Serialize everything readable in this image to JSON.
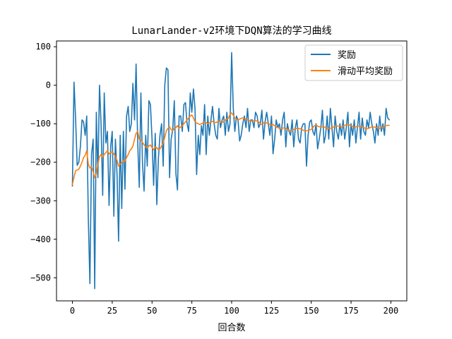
{
  "chart_data": {
    "type": "line",
    "title": "LunarLander-v2环境下DQN算法的学习曲线",
    "xlabel": "回合数",
    "ylabel": "",
    "xlim": [
      -10,
      210
    ],
    "ylim": [
      -560,
      115
    ],
    "xticks": [
      0,
      25,
      50,
      75,
      100,
      125,
      150,
      175,
      200
    ],
    "yticks": [
      100,
      0,
      -100,
      -200,
      -300,
      -400,
      -500
    ],
    "legend_position": "top-right",
    "x": [
      0,
      1,
      2,
      3,
      4,
      5,
      6,
      7,
      8,
      9,
      10,
      11,
      12,
      13,
      14,
      15,
      16,
      17,
      18,
      19,
      20,
      21,
      22,
      23,
      24,
      25,
      26,
      27,
      28,
      29,
      30,
      31,
      32,
      33,
      34,
      35,
      36,
      37,
      38,
      39,
      40,
      41,
      42,
      43,
      44,
      45,
      46,
      47,
      48,
      49,
      50,
      51,
      52,
      53,
      54,
      55,
      56,
      57,
      58,
      59,
      60,
      61,
      62,
      63,
      64,
      65,
      66,
      67,
      68,
      69,
      70,
      71,
      72,
      73,
      74,
      75,
      76,
      77,
      78,
      79,
      80,
      81,
      82,
      83,
      84,
      85,
      86,
      87,
      88,
      89,
      90,
      91,
      92,
      93,
      94,
      95,
      96,
      97,
      98,
      99,
      100,
      101,
      102,
      103,
      104,
      105,
      106,
      107,
      108,
      109,
      110,
      111,
      112,
      113,
      114,
      115,
      116,
      117,
      118,
      119,
      120,
      121,
      122,
      123,
      124,
      125,
      126,
      127,
      128,
      129,
      130,
      131,
      132,
      133,
      134,
      135,
      136,
      137,
      138,
      139,
      140,
      141,
      142,
      143,
      144,
      145,
      146,
      147,
      148,
      149,
      150,
      151,
      152,
      153,
      154,
      155,
      156,
      157,
      158,
      159,
      160,
      161,
      162,
      163,
      164,
      165,
      166,
      167,
      168,
      169,
      170,
      171,
      172,
      173,
      174,
      175,
      176,
      177,
      178,
      179,
      180,
      181,
      182,
      183,
      184,
      185,
      186,
      187,
      188,
      189,
      190,
      191,
      192,
      193,
      194,
      195,
      196,
      197,
      198,
      199
    ],
    "series": [
      {
        "name": "奖励",
        "color": "#1f77b4",
        "values": [
          -262,
          8,
          -90,
          -208,
          -200,
          -160,
          -90,
          -95,
          -130,
          -80,
          -350,
          -515,
          -180,
          -140,
          -528,
          -70,
          -240,
          0,
          -100,
          -286,
          -20,
          -150,
          -120,
          -312,
          -160,
          -120,
          -340,
          -140,
          -230,
          -405,
          -130,
          -320,
          -120,
          -270,
          -80,
          -55,
          -120,
          -100,
          5,
          -90,
          55,
          -150,
          -265,
          -20,
          -200,
          -275,
          -130,
          -210,
          -40,
          -50,
          -140,
          -260,
          -125,
          -310,
          -190,
          -130,
          -100,
          -210,
          0,
          45,
          40,
          -240,
          -140,
          -115,
          -40,
          -230,
          -272,
          -80,
          -80,
          -120,
          -50,
          -45,
          -100,
          -120,
          -20,
          -70,
          -10,
          -60,
          -232,
          -130,
          -180,
          -105,
          -130,
          -50,
          -180,
          -80,
          -130,
          -90,
          -55,
          -100,
          -130,
          -140,
          -60,
          -110,
          -90,
          -80,
          -130,
          -70,
          -120,
          -100,
          85,
          -60,
          -120,
          -80,
          -90,
          -145,
          -130,
          -100,
          -80,
          -110,
          -60,
          -120,
          -90,
          -90,
          -110,
          -70,
          -80,
          -110,
          -100,
          -65,
          -140,
          -95,
          -70,
          -100,
          -130,
          -80,
          -178,
          -140,
          -90,
          -110,
          -100,
          -130,
          -90,
          -70,
          -160,
          -100,
          -120,
          -130,
          -90,
          -160,
          -110,
          -90,
          -140,
          -150,
          -110,
          -100,
          -100,
          -210,
          -130,
          -95,
          -90,
          -120,
          -130,
          -100,
          -165,
          -140,
          -110,
          -65,
          -150,
          -130,
          -80,
          -140,
          -60,
          -110,
          -160,
          -80,
          -120,
          -140,
          -100,
          -130,
          -90,
          -140,
          -110,
          -70,
          -160,
          -100,
          -130,
          -90,
          -150,
          -110,
          -70,
          -140,
          -85,
          -120,
          -130,
          -90,
          -110,
          -70,
          -100,
          -120,
          -150,
          -100,
          -130,
          -80,
          -120,
          -100,
          -130,
          -60,
          -85,
          -90
        ]
      },
      {
        "name": "滑动平均奖励",
        "color": "#ff7f0e",
        "values": [
          -258,
          -238,
          -222,
          -220,
          -218,
          -210,
          -200,
          -188,
          -182,
          -170,
          -205,
          -215,
          -212,
          -225,
          -240,
          -230,
          -205,
          -185,
          -180,
          -187,
          -180,
          -175,
          -170,
          -178,
          -175,
          -173,
          -178,
          -185,
          -195,
          -210,
          -205,
          -202,
          -195,
          -198,
          -188,
          -180,
          -170,
          -165,
          -158,
          -140,
          -125,
          -120,
          -140,
          -142,
          -148,
          -155,
          -160,
          -163,
          -158,
          -155,
          -162,
          -168,
          -160,
          -162,
          -168,
          -165,
          -158,
          -150,
          -135,
          -118,
          -112,
          -108,
          -115,
          -118,
          -112,
          -110,
          -105,
          -112,
          -108,
          -105,
          -100,
          -95,
          -90,
          -85,
          -80,
          -77,
          -85,
          -95,
          -98,
          -100,
          -102,
          -100,
          -98,
          -95,
          -97,
          -100,
          -98,
          -96,
          -94,
          -96,
          -97,
          -95,
          -93,
          -96,
          -97,
          -94,
          -90,
          -88,
          -86,
          -75,
          -72,
          -78,
          -85,
          -88,
          -90,
          -88,
          -86,
          -85,
          -86,
          -88,
          -90,
          -92,
          -92,
          -93,
          -92,
          -92,
          -93,
          -95,
          -100,
          -102,
          -98,
          -96,
          -98,
          -100,
          -102,
          -103,
          -102,
          -105,
          -108,
          -110,
          -112,
          -113,
          -112,
          -110,
          -112,
          -115,
          -117,
          -118,
          -118,
          -115,
          -113,
          -112,
          -112,
          -113,
          -115,
          -117,
          -118,
          -118,
          -118,
          -116,
          -115,
          -110,
          -105,
          -104,
          -106,
          -108,
          -108,
          -108,
          -108,
          -110,
          -112,
          -113,
          -112,
          -110,
          -108,
          -106,
          -106,
          -106,
          -107,
          -108,
          -106,
          -104,
          -103,
          -102,
          -103,
          -105,
          -107,
          -108,
          -108,
          -107,
          -106,
          -107,
          -108,
          -110,
          -112,
          -113,
          -112,
          -110,
          -108,
          -108,
          -109,
          -110,
          -111,
          -112,
          -110,
          -108,
          -106,
          -105,
          -104,
          -104
        ]
      }
    ]
  }
}
